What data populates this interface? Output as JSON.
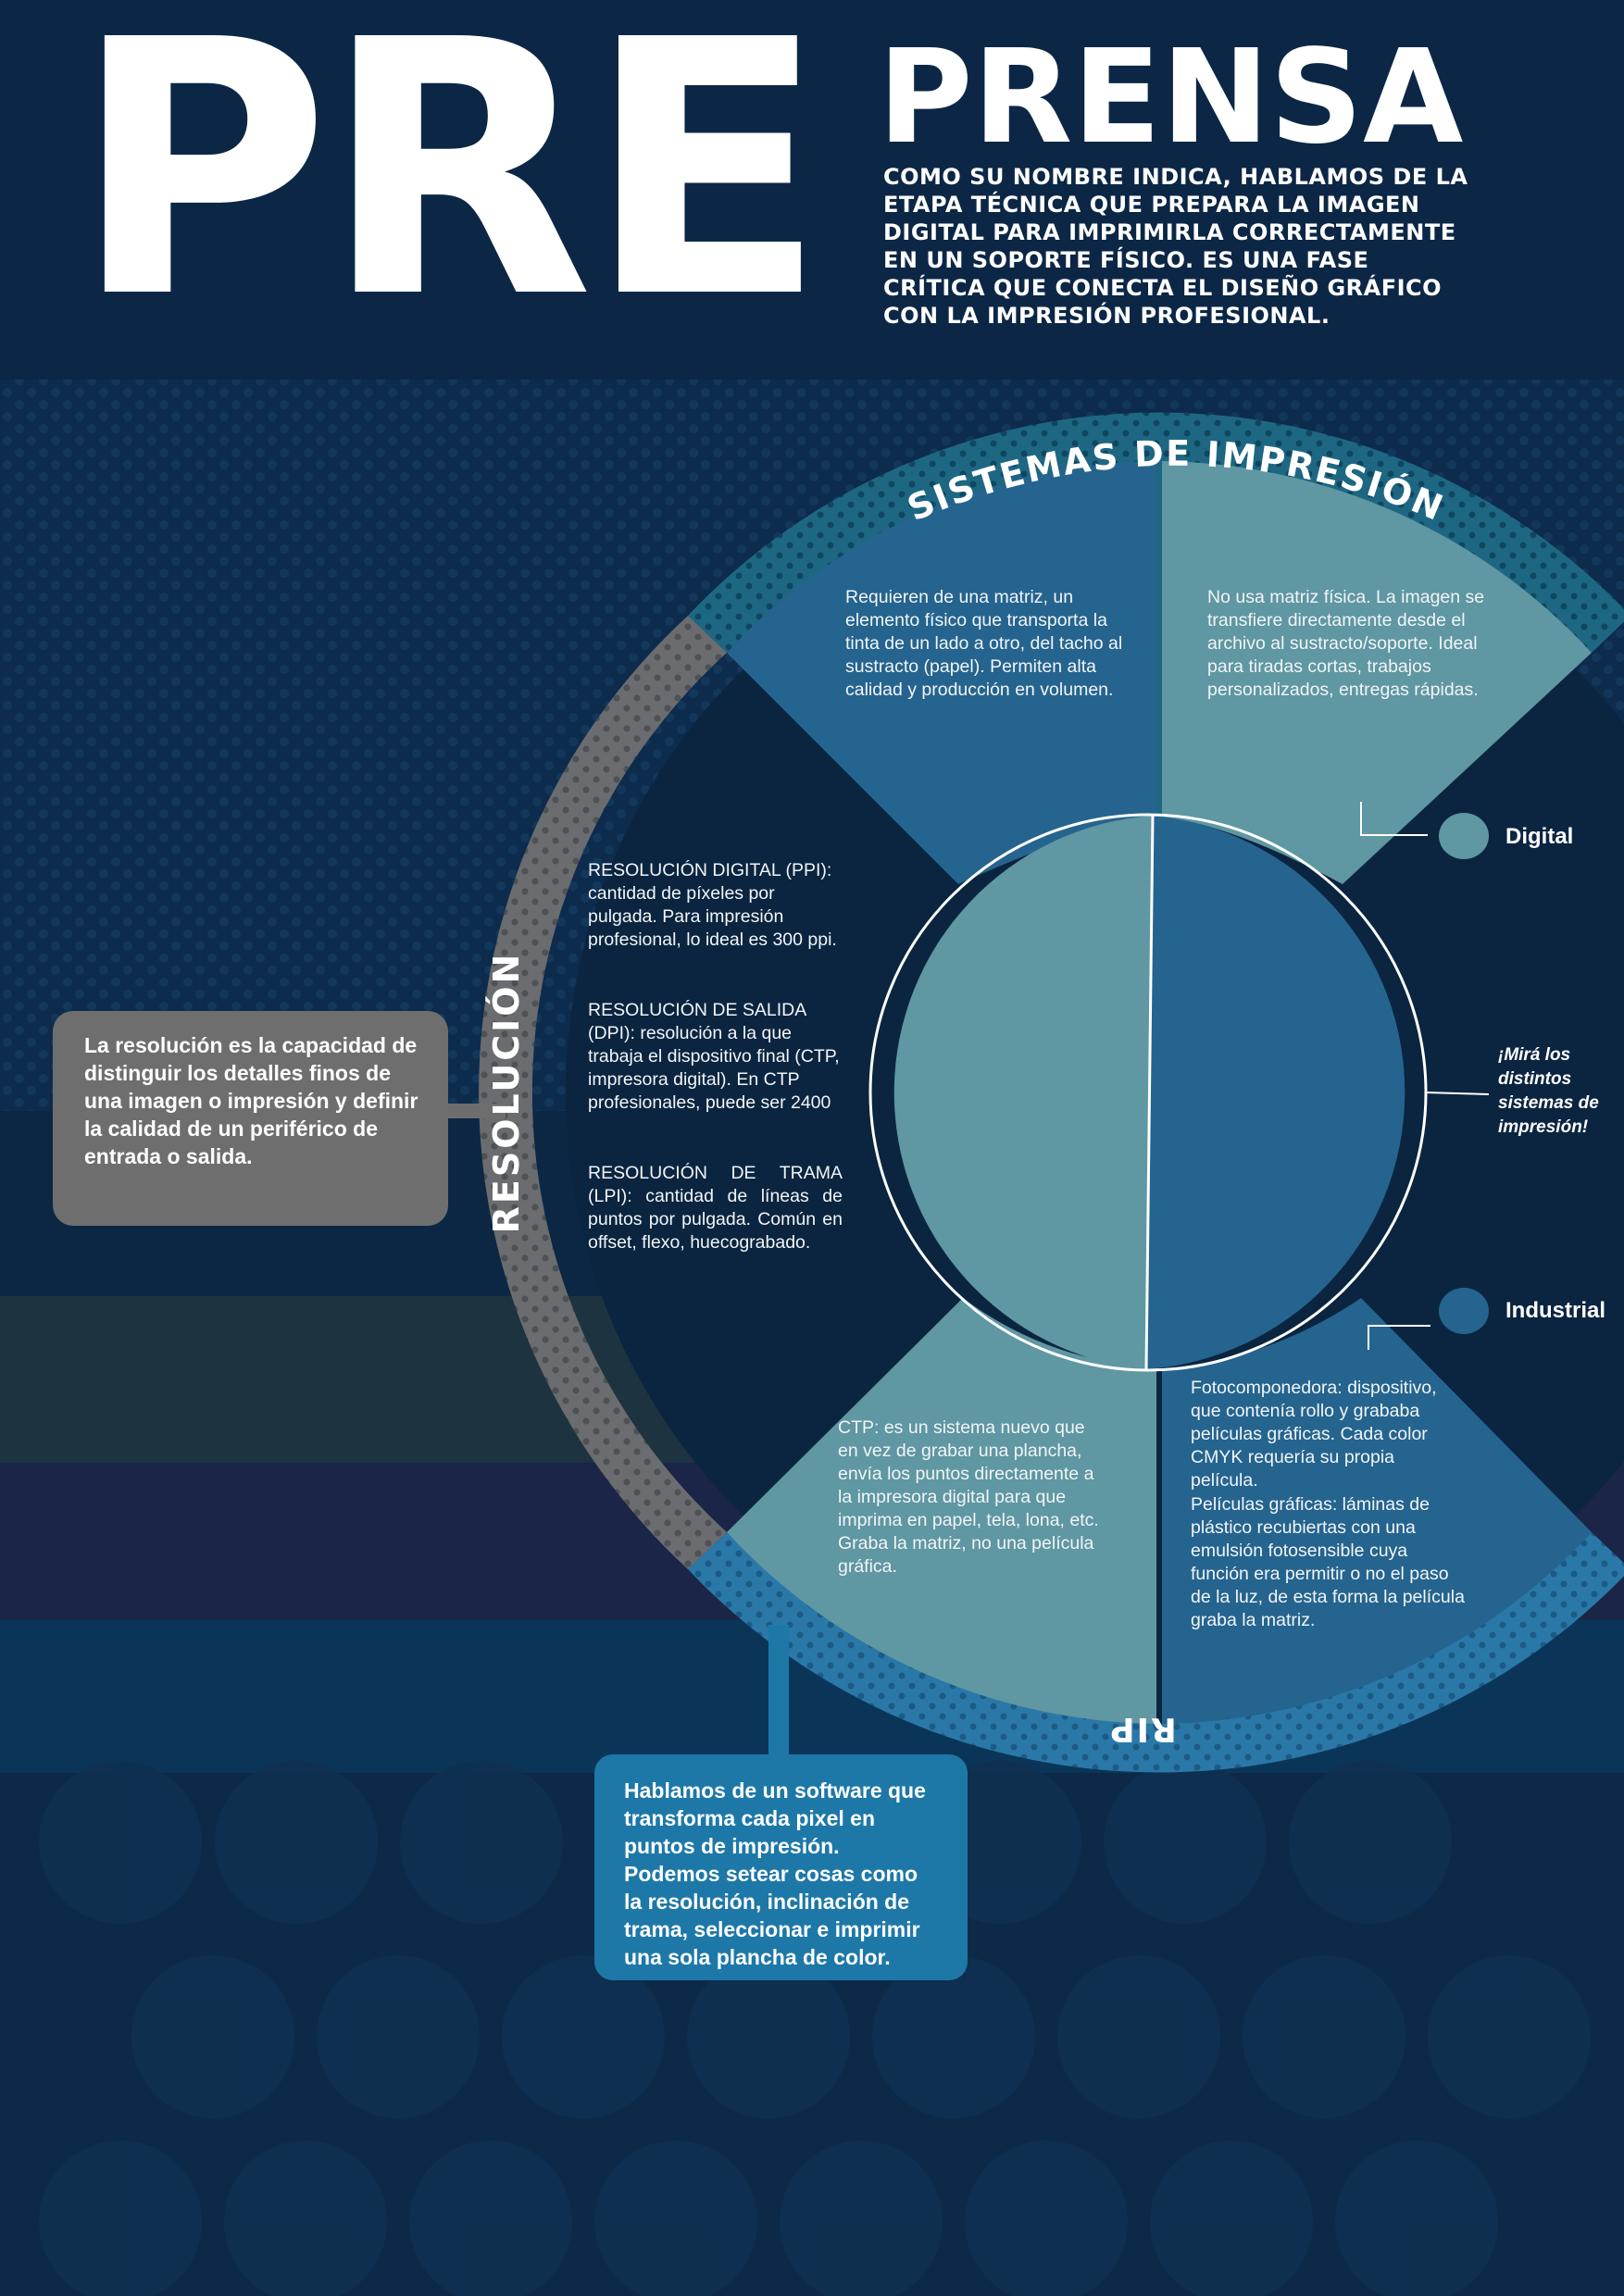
{
  "header": {
    "title_left": "PRE",
    "title_right": "PRENSA",
    "intro": "Como su nombre indica, hablamos de la etapa técnica que prepara la imagen digital para imprimirla correctamente en un soporte físico. Es una fase crítica que conecta el diseño gráfico con la impresión profesional."
  },
  "ring": {
    "top_label": "SISTEMAS DE IMPRESIÓN",
    "left_label": "RESOLUCIÓN",
    "bottom_label": "RIP"
  },
  "segments": {
    "industrial_text": "Requieren de una matriz, un elemento físico que transporta la tinta de un lado a otro, del tacho al sustracto (papel). Permiten alta calidad y producción en volumen.",
    "digital_text": "No usa matriz física. La imagen se transfiere directamente desde el archivo al sustracto/soporte. Ideal para tiradas cortas, trabajos personalizados, entregas rápidas.",
    "ctp_text": "CTP: es un sistema nuevo que en vez de grabar una plancha, envía los puntos directamente a la impresora digital para que imprima en papel, tela, lona, etc. Graba la matriz, no una película gráfica.",
    "fotocomponedora_text": "Fotocomponedora:  dispositivo, que contenía rollo y grababa películas gráficas. Cada color CMYK requería su propia película.",
    "peliculas_text": "Películas gráficas: láminas de plástico recubiertas con una emulsión fotosensible cuya función era permitir o no el paso de la luz, de esta forma la película graba la matriz."
  },
  "resolution": {
    "ppi": "RESOLUCIÓN DIGITAL (PPI): cantidad de píxeles por pulgada. Para impresión profesional, lo ideal es 300 ppi.",
    "dpi": "RESOLUCIÓN DE SALIDA (DPI): resolución a la que trabaja el dispositivo final (CTP, impresora digital). En CTP profesionales, puede ser 2400",
    "lpi": "RESOLUCIÓN DE TRAMA (LPI): cantidad de líneas de puntos por pulgada. Común en offset, flexo, huecograbado."
  },
  "legend": {
    "digital": "Digital",
    "industrial": "Industrial",
    "hint": "¡Mirá los distintos sistemas de impresión!"
  },
  "callouts": {
    "resolution": "La resolución es la capacidad de distinguir los detalles finos de una imagen o impresión y definir la calidad de un periférico de entrada o salida.",
    "rip": "Hablamos de un software que transforma cada pixel en puntos de impresión. Podemos setear cosas como la resolución, inclinación de trama, seleccionar e imprimir una sola plancha de color."
  },
  "colors": {
    "background": "#0b2540",
    "industrial": "#25648e",
    "digital": "#5f97a2",
    "ring_teal": "#1f6682",
    "ring_gray": "#6b6d70",
    "ring_blue": "#2674a3",
    "resolution_box": "#6e6e6e",
    "rip_box": "#1d78a8"
  }
}
